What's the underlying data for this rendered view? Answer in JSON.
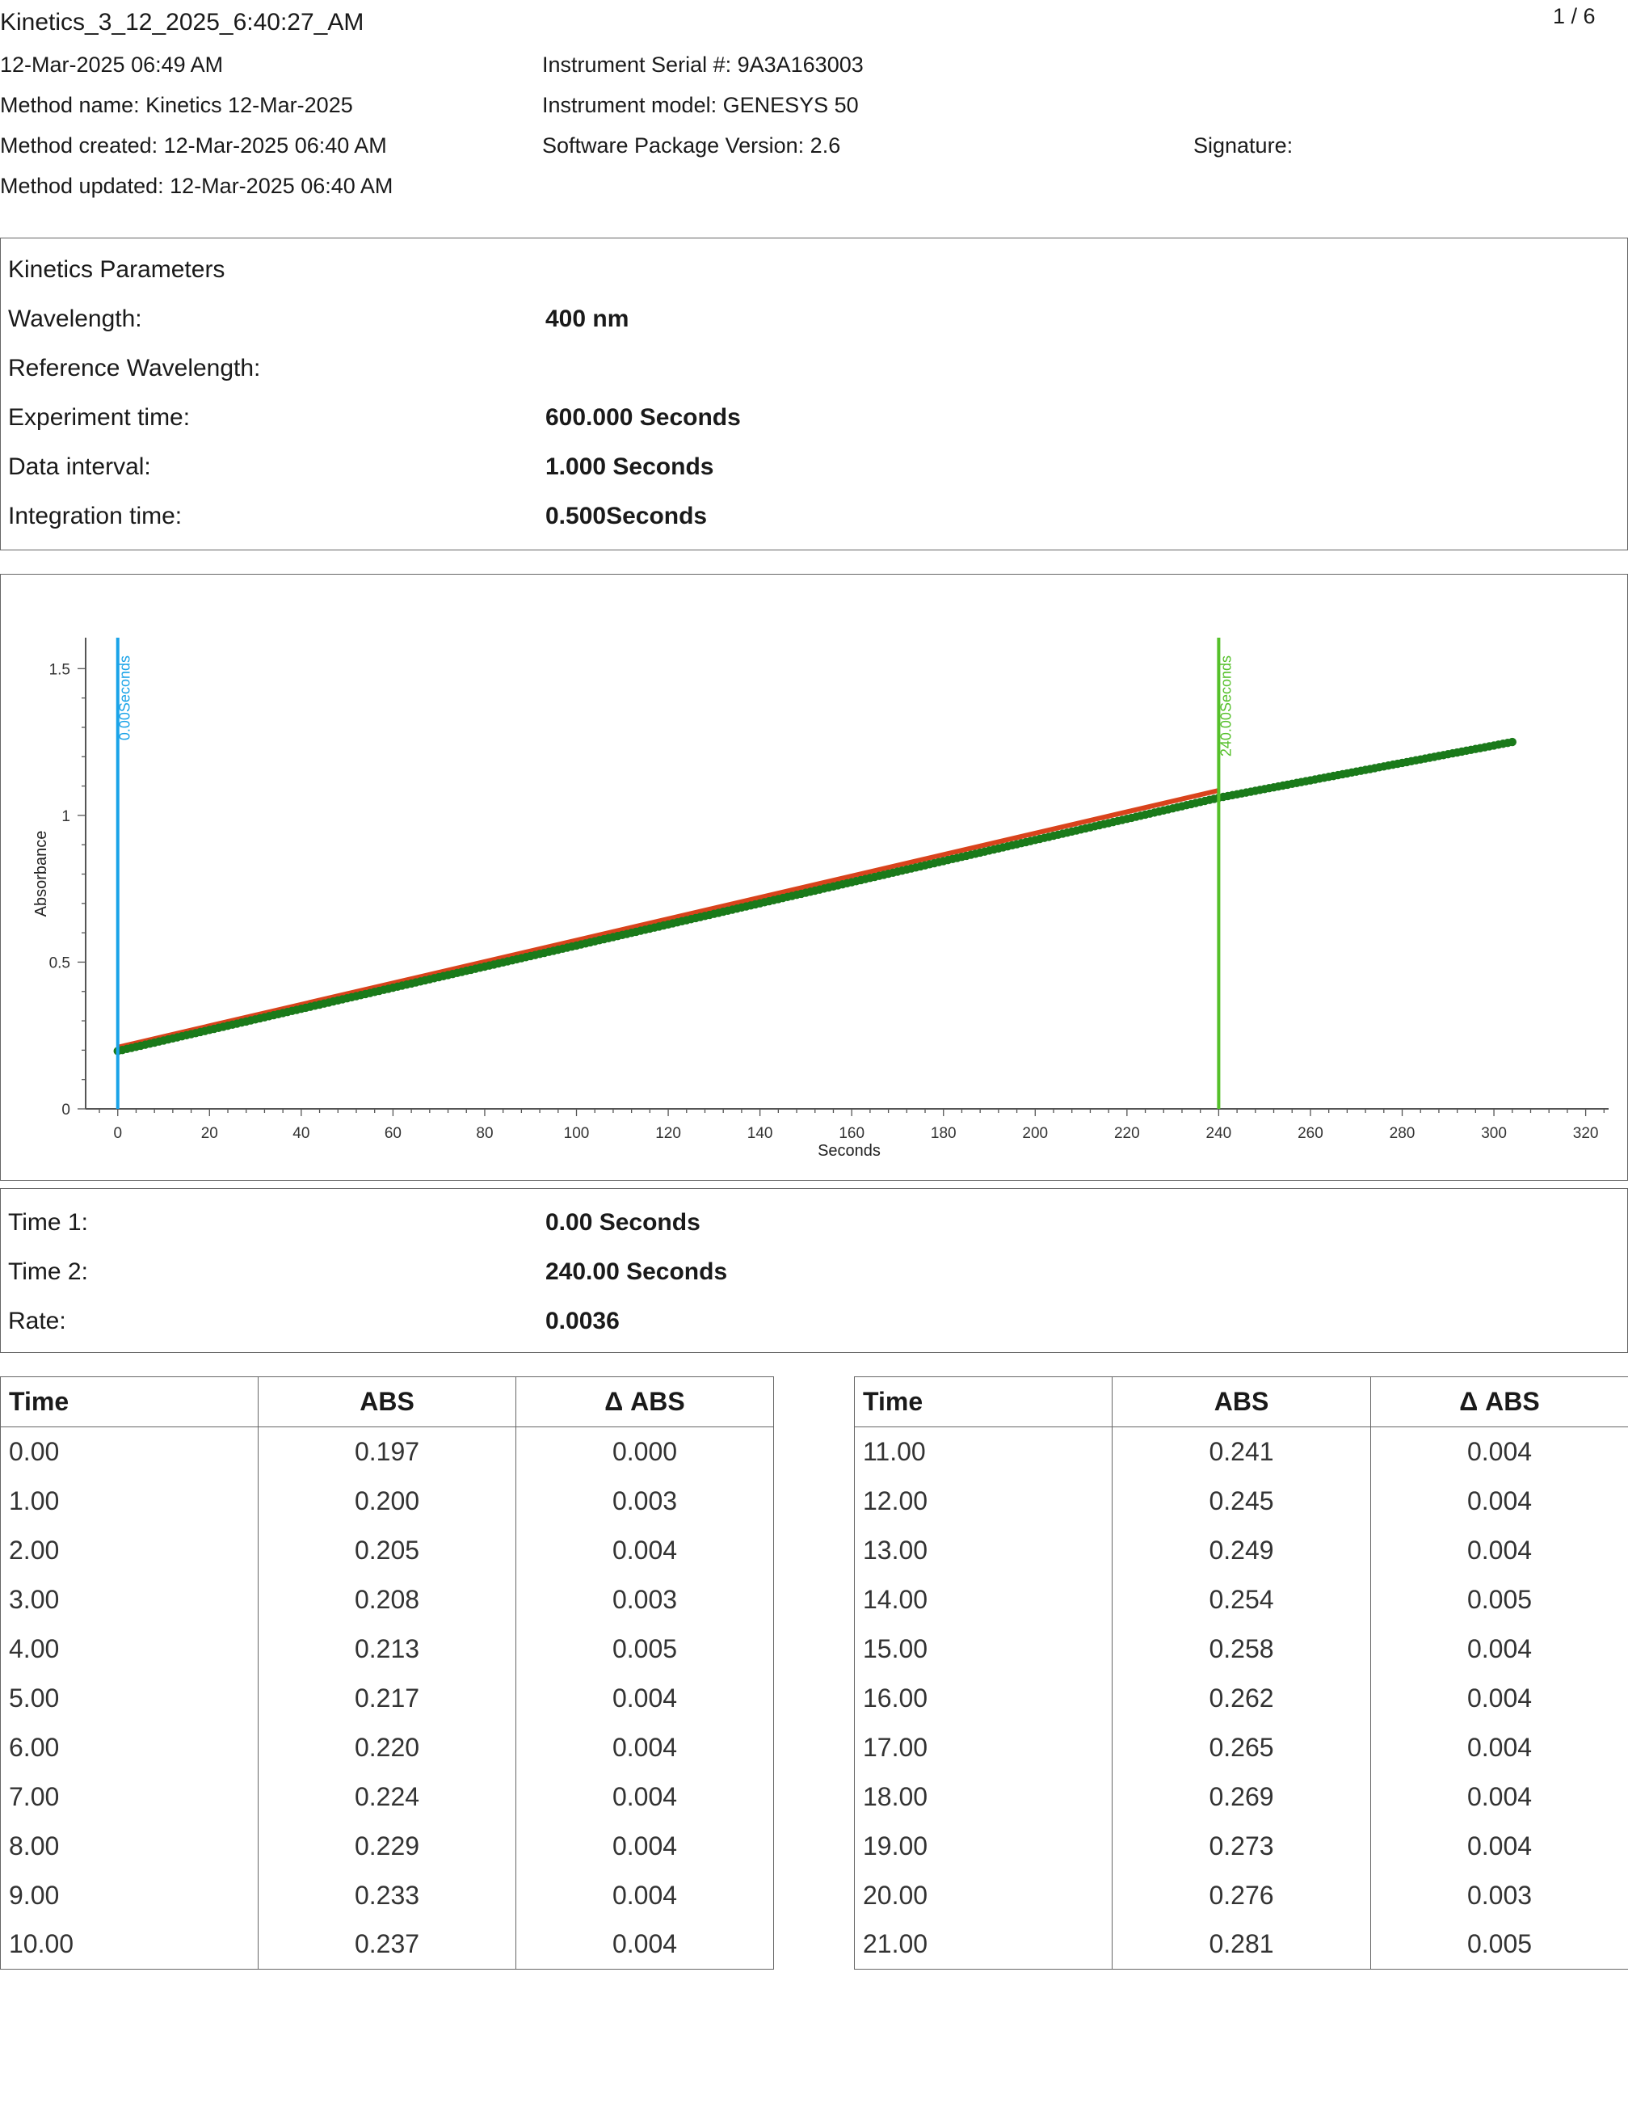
{
  "header": {
    "file_title": "Kinetics_3_12_2025_6:40:27_AM",
    "page_indicator": "1 / 6",
    "datetime": "12-Mar-2025 06:49 AM",
    "method_name": "Method name: Kinetics 12-Mar-2025",
    "method_created": "Method created: 12-Mar-2025 06:40 AM",
    "method_updated": "Method updated: 12-Mar-2025 06:40 AM",
    "serial": "Instrument Serial #: 9A3A163003",
    "model": "Instrument model: GENESYS 50",
    "software": "Software Package Version: 2.6",
    "signature": "Signature:"
  },
  "params": {
    "title": "Kinetics Parameters",
    "rows": [
      {
        "label": "Wavelength:",
        "value": "400 nm"
      },
      {
        "label": "Reference Wavelength:",
        "value": ""
      },
      {
        "label": "Experiment time:",
        "value": "600.000 Seconds"
      },
      {
        "label": "Data interval:",
        "value": "1.000 Seconds"
      },
      {
        "label": "Integration time:",
        "value": "0.500Seconds"
      }
    ]
  },
  "chart_data": {
    "type": "scatter",
    "xlabel": "Seconds",
    "ylabel": "Absorbance",
    "xlim": [
      -7,
      325
    ],
    "ylim": [
      0,
      1.6
    ],
    "xticks": [
      0,
      20,
      40,
      60,
      80,
      100,
      120,
      140,
      160,
      180,
      200,
      220,
      240,
      260,
      280,
      300,
      320
    ],
    "yticks": [
      0,
      0.5,
      1,
      1.5
    ],
    "ytick_labels": [
      "0",
      "0.5",
      "1",
      "1.5"
    ],
    "grid": false,
    "series": [
      {
        "color": "#1a7a1a",
        "x_start": 0,
        "x_end": 304,
        "x_step": 1,
        "y_start": 0.197,
        "y_end": 1.25,
        "y_at_240": 1.06
      }
    ],
    "fit_line": {
      "color": "#d9431c",
      "x": [
        0,
        240
      ],
      "y": [
        0.21,
        1.085
      ]
    },
    "markers": [
      {
        "x": 0,
        "label": "0.00Seconds",
        "color": "#1aa3e8"
      },
      {
        "x": 240,
        "label": "240.00Seconds",
        "color": "#55c02a"
      }
    ]
  },
  "results": {
    "rows": [
      {
        "label": "Time 1:",
        "value": "0.00 Seconds"
      },
      {
        "label": "Time 2:",
        "value": "240.00 Seconds"
      },
      {
        "label": "Rate:",
        "value": "0.0036"
      }
    ]
  },
  "table": {
    "headers": [
      "Time",
      "ABS",
      "Δ ABS"
    ],
    "left": [
      [
        "0.00",
        "0.197",
        "0.000"
      ],
      [
        "1.00",
        "0.200",
        "0.003"
      ],
      [
        "2.00",
        "0.205",
        "0.004"
      ],
      [
        "3.00",
        "0.208",
        "0.003"
      ],
      [
        "4.00",
        "0.213",
        "0.005"
      ],
      [
        "5.00",
        "0.217",
        "0.004"
      ],
      [
        "6.00",
        "0.220",
        "0.004"
      ],
      [
        "7.00",
        "0.224",
        "0.004"
      ],
      [
        "8.00",
        "0.229",
        "0.004"
      ],
      [
        "9.00",
        "0.233",
        "0.004"
      ],
      [
        "10.00",
        "0.237",
        "0.004"
      ]
    ],
    "right": [
      [
        "11.00",
        "0.241",
        "0.004"
      ],
      [
        "12.00",
        "0.245",
        "0.004"
      ],
      [
        "13.00",
        "0.249",
        "0.004"
      ],
      [
        "14.00",
        "0.254",
        "0.005"
      ],
      [
        "15.00",
        "0.258",
        "0.004"
      ],
      [
        "16.00",
        "0.262",
        "0.004"
      ],
      [
        "17.00",
        "0.265",
        "0.004"
      ],
      [
        "18.00",
        "0.269",
        "0.004"
      ],
      [
        "19.00",
        "0.273",
        "0.004"
      ],
      [
        "20.00",
        "0.276",
        "0.003"
      ],
      [
        "21.00",
        "0.281",
        "0.005"
      ]
    ]
  }
}
